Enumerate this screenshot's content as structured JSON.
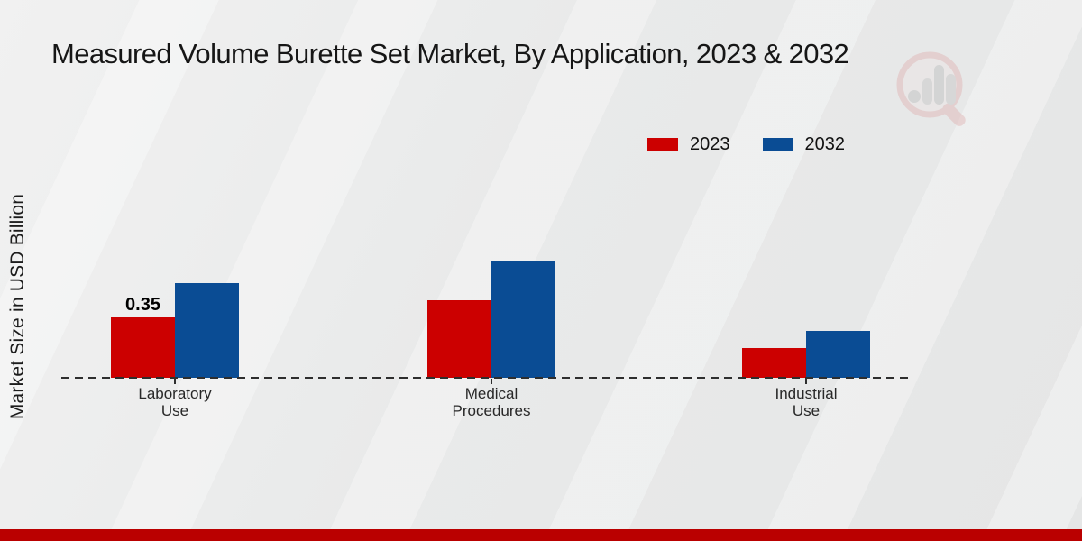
{
  "title": "Measured Volume Burette Set Market, By Application, 2023 & 2032",
  "y_axis_label": "Market Size in USD Billion",
  "legend": {
    "items": [
      {
        "label": "2023",
        "color": "#cc0000"
      },
      {
        "label": "2032",
        "color": "#0a4c94"
      }
    ]
  },
  "watermark": {
    "icon": "magnifier-bar-chart-logo"
  },
  "footer": {
    "bar_color": "#ba0000"
  },
  "colors": {
    "series_2023": "#cc0000",
    "series_2032": "#0a4c94",
    "baseline": "#2e2e2e",
    "background": "#e9eaea"
  },
  "chart_data": {
    "type": "bar",
    "title": "Measured Volume Burette Set Market, By Application, 2023 & 2032",
    "categories": [
      "Laboratory Use",
      "Medical Procedures",
      "Industrial Use"
    ],
    "category_lines": [
      [
        "Laboratory",
        "Use"
      ],
      [
        "Medical",
        "Procedures"
      ],
      [
        "Industrial",
        "Use"
      ]
    ],
    "series": [
      {
        "name": "2023",
        "color": "#cc0000",
        "values": [
          0.35,
          0.45,
          0.17
        ],
        "data_labels": [
          "0.35",
          null,
          null
        ]
      },
      {
        "name": "2032",
        "color": "#0a4c94",
        "values": [
          0.55,
          0.68,
          0.27
        ],
        "data_labels": [
          null,
          null,
          null
        ]
      }
    ],
    "xlabel": "",
    "ylabel": "Market Size in USD Billion",
    "ylim": [
      0,
      0.8
    ],
    "grid": false,
    "legend_position": "top-right",
    "baseline_style": "dashed"
  }
}
